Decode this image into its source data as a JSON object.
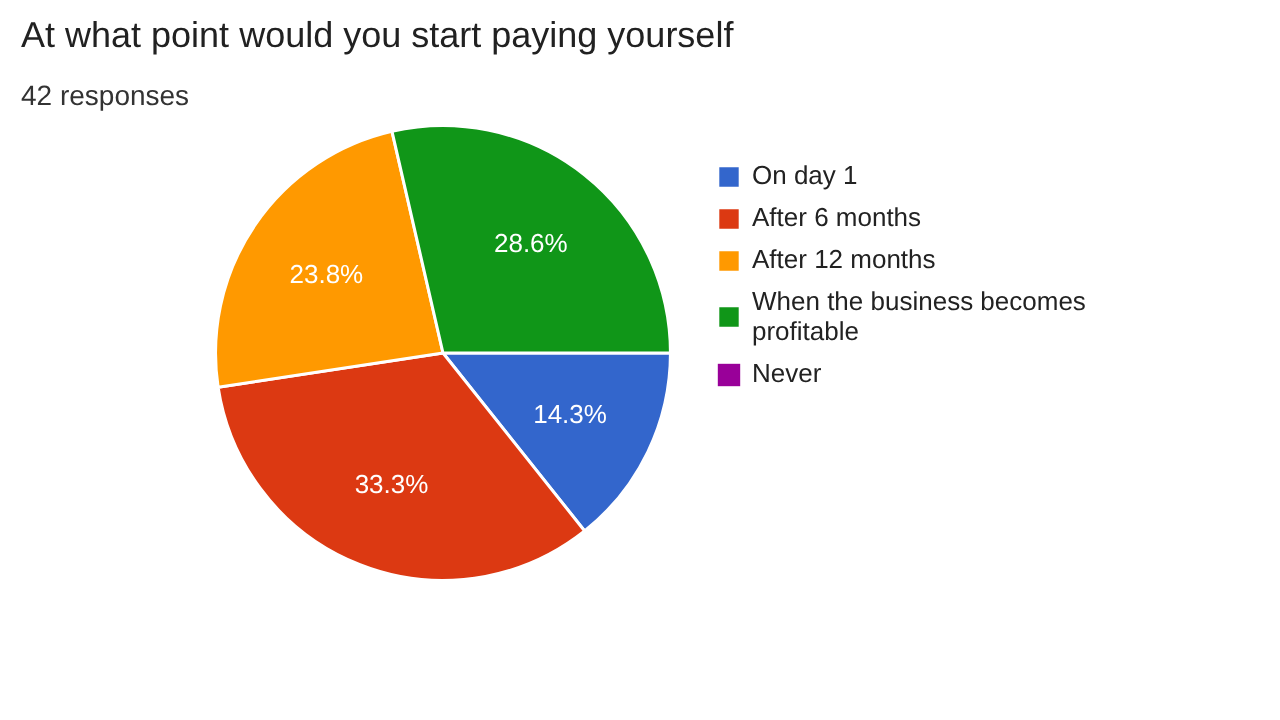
{
  "chart_data": {
    "type": "pie",
    "title": "At what point would you start paying yourself",
    "subtitle": "42 responses",
    "categories": [
      "On day 1",
      "After 6 months",
      "After 12 months",
      "When the business becomes profitable",
      "Never"
    ],
    "values": [
      14.3,
      33.3,
      23.8,
      28.6,
      0
    ],
    "colors": [
      "#3366cc",
      "#dc3912",
      "#ff9900",
      "#109618",
      "#990099"
    ],
    "value_labels": [
      "14.3%",
      "33.3%",
      "23.8%",
      "28.6%",
      null
    ],
    "legend": "right"
  }
}
